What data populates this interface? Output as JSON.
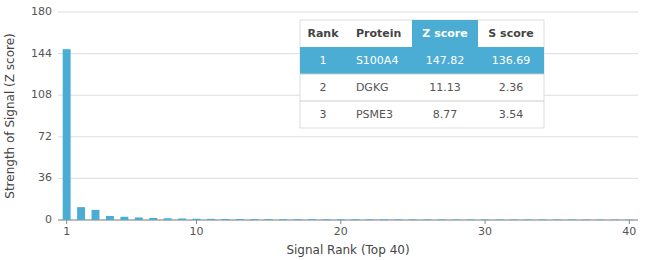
{
  "chart_data": {
    "type": "bar",
    "xlabel": "Signal Rank (Top 40)",
    "ylabel": "Strength of Signal (Z score)",
    "x": [
      1,
      2,
      3,
      4,
      5,
      6,
      7,
      8,
      9,
      10,
      11,
      12,
      13,
      14,
      15,
      16,
      17,
      18,
      19,
      20,
      21,
      22,
      23,
      24,
      25,
      26,
      27,
      28,
      29,
      30,
      31,
      32,
      33,
      34,
      35,
      36,
      37,
      38,
      39,
      40
    ],
    "values": [
      147.82,
      11.13,
      8.77,
      3.5,
      2.8,
      2.2,
      1.8,
      1.5,
      1.3,
      1.1,
      1.0,
      0.9,
      0.85,
      0.8,
      0.75,
      0.72,
      0.68,
      0.65,
      0.62,
      0.6,
      0.57,
      0.55,
      0.53,
      0.51,
      0.49,
      0.47,
      0.46,
      0.44,
      0.43,
      0.42,
      0.41,
      0.4,
      0.39,
      0.38,
      0.37,
      0.36,
      0.35,
      0.34,
      0.33,
      0.32
    ],
    "color": "#4BADD4",
    "xlim": [
      0.4,
      40.6
    ],
    "xticks": [
      1,
      10,
      20,
      30,
      40
    ],
    "ylim": [
      0,
      180
    ],
    "yticks": [
      0,
      36,
      72,
      108,
      144,
      180
    ],
    "grid": true,
    "table": {
      "columns": [
        "Rank",
        "Protein",
        "Z score",
        "S score"
      ],
      "rows": [
        [
          "1",
          "S100A4",
          "147.82",
          "136.69"
        ],
        [
          "2",
          "DGKG",
          "11.13",
          "2.36"
        ],
        [
          "3",
          "PSME3",
          "8.77",
          "3.54"
        ]
      ]
    }
  }
}
